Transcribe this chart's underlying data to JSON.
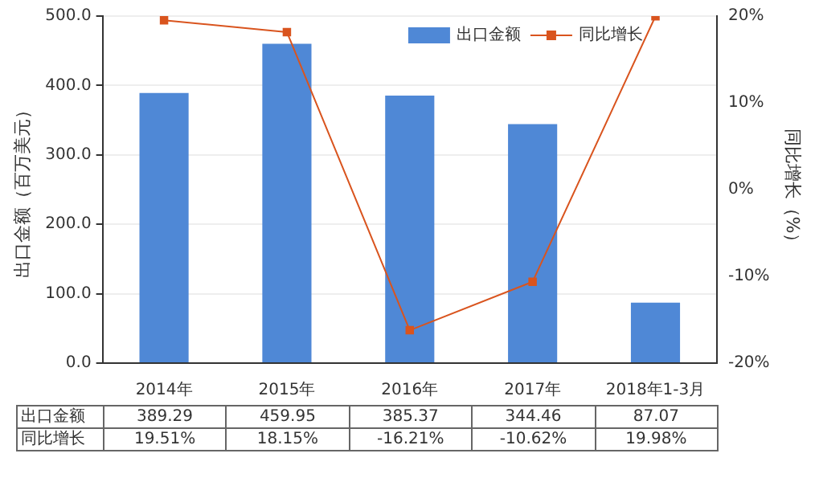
{
  "chart_data": {
    "type": "bar",
    "ylabel": "出口金额（百万美元）",
    "y2label": "同比增长（%）",
    "categories": [
      "2014年",
      "2015年",
      "2016年",
      "2017年",
      "2018年1-3月"
    ],
    "series": [
      {
        "name": "出口金额",
        "color": "#4f88d6",
        "values": [
          389.29,
          459.95,
          385.37,
          344.46,
          87.07
        ],
        "value_labels": [
          "389.29",
          "459.95",
          "385.37",
          "344.46",
          "87.07"
        ]
      },
      {
        "name": "同比增长",
        "type": "line",
        "axis": "y2",
        "color": "#d9541e",
        "marker": "square",
        "values": [
          19.51,
          18.15,
          -16.21,
          -10.62,
          19.98
        ],
        "value_labels": [
          "19.51%",
          "18.15%",
          "-16.21%",
          "-10.62%",
          "19.98%"
        ]
      }
    ],
    "ylim": [
      0,
      500
    ],
    "yticks": [
      {
        "value": 0,
        "label": "0.0"
      },
      {
        "value": 100,
        "label": "100.0"
      },
      {
        "value": 200,
        "label": "200.0"
      },
      {
        "value": 300,
        "label": "300.0"
      },
      {
        "value": 400,
        "label": "400.0"
      },
      {
        "value": 500,
        "label": "500.0"
      }
    ],
    "y2lim": [
      -20,
      20
    ],
    "y2ticks": [
      {
        "value": -20,
        "label": "-20%"
      },
      {
        "value": -10,
        "label": "-10%"
      },
      {
        "value": 0,
        "label": "0%"
      },
      {
        "value": 10,
        "label": "10%"
      },
      {
        "value": 20,
        "label": "20%"
      }
    ],
    "grid": "y",
    "legend": "top right",
    "data_labels": true
  }
}
